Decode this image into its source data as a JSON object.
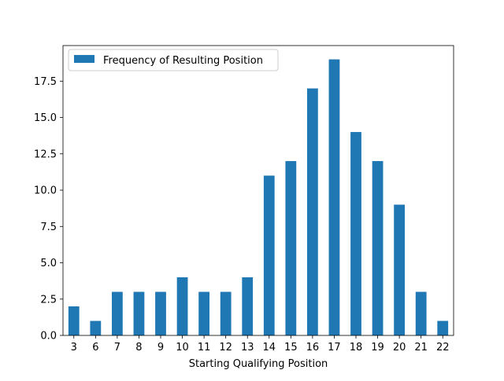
{
  "chart_data": {
    "type": "bar",
    "title": "",
    "xlabel": "Starting Qualifying Position",
    "ylabel": "",
    "categories": [
      "3",
      "6",
      "7",
      "8",
      "9",
      "10",
      "11",
      "12",
      "13",
      "14",
      "15",
      "16",
      "17",
      "18",
      "19",
      "20",
      "21",
      "22"
    ],
    "series": [
      {
        "name": "Frequency of Resulting Position",
        "color": "#1f77b4",
        "values": [
          2,
          1,
          3,
          3,
          3,
          4,
          3,
          3,
          4,
          11,
          12,
          17,
          19,
          14,
          12,
          9,
          3,
          1
        ]
      }
    ],
    "ylim": [
      0,
      19.95
    ],
    "yticks": [
      "0.0",
      "2.5",
      "5.0",
      "7.5",
      "10.0",
      "12.5",
      "15.0",
      "17.5"
    ],
    "grid": false,
    "legend": "top-left"
  }
}
